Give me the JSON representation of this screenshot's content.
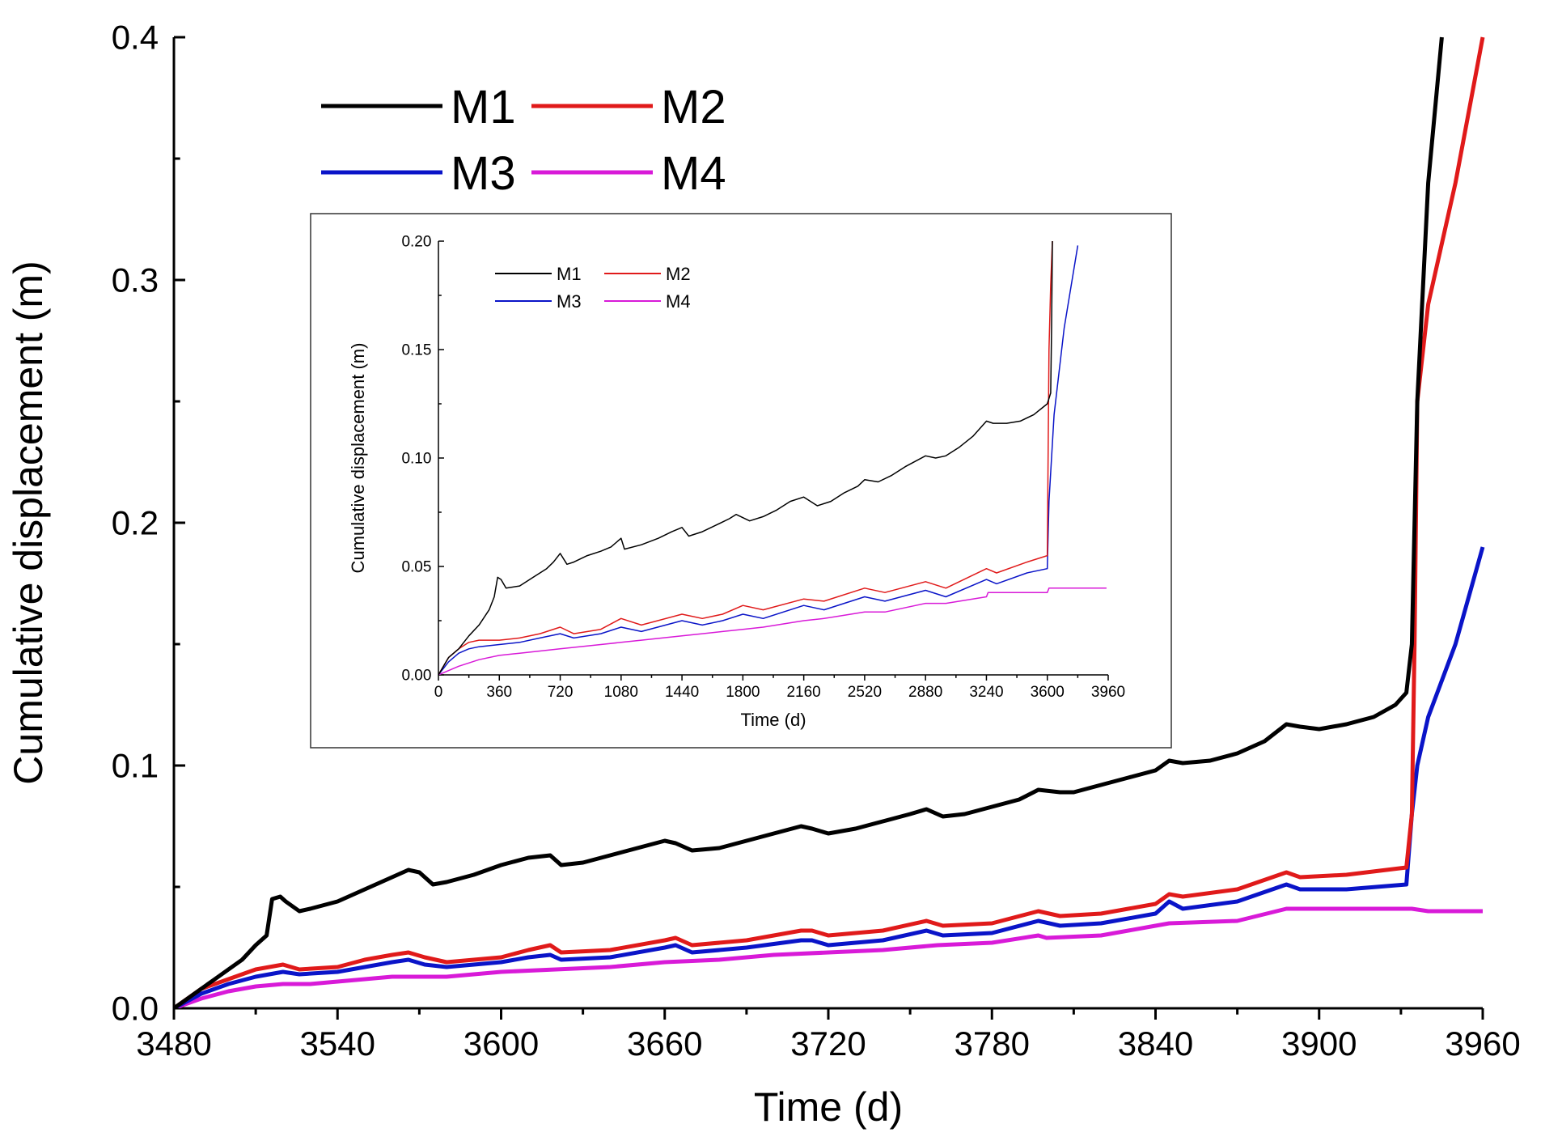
{
  "chart_data": [
    {
      "type": "line",
      "title": "",
      "xlabel": "Time (d)",
      "ylabel": "Cumulative displacement (m)",
      "xlim": [
        3480,
        3960
      ],
      "ylim": [
        0.0,
        0.4
      ],
      "xticks": [
        3480,
        3540,
        3600,
        3660,
        3720,
        3780,
        3840,
        3900,
        3960
      ],
      "xtick_labels": [
        "3480",
        "3540",
        "3600",
        "3660",
        "3720",
        "3780",
        "3840",
        "3900",
        "3960"
      ],
      "yticks": [
        0.0,
        0.1,
        0.2,
        0.3,
        0.4
      ],
      "ytick_labels": [
        "0.0",
        "0.1",
        "0.2",
        "0.3",
        "0.4"
      ],
      "grid": false,
      "legend": "top-left",
      "series": [
        {
          "name": "M1",
          "color": "#000000",
          "x": [
            3480,
            3485,
            3490,
            3495,
            3500,
            3505,
            3510,
            3514,
            3516,
            3519,
            3521,
            3526,
            3530,
            3540,
            3550,
            3560,
            3566,
            3570,
            3575,
            3580,
            3590,
            3600,
            3610,
            3618,
            3622,
            3630,
            3640,
            3650,
            3660,
            3664,
            3670,
            3680,
            3690,
            3700,
            3710,
            3714,
            3720,
            3730,
            3740,
            3750,
            3756,
            3762,
            3770,
            3780,
            3790,
            3797,
            3805,
            3810,
            3820,
            3830,
            3840,
            3845,
            3850,
            3860,
            3870,
            3880,
            3888,
            3893,
            3900,
            3910,
            3920,
            3928,
            3932,
            3934,
            3936,
            3940,
            3945
          ],
          "y": [
            0.0,
            0.004,
            0.008,
            0.012,
            0.016,
            0.02,
            0.026,
            0.03,
            0.045,
            0.046,
            0.044,
            0.04,
            0.041,
            0.044,
            0.049,
            0.054,
            0.057,
            0.056,
            0.051,
            0.052,
            0.055,
            0.059,
            0.062,
            0.063,
            0.059,
            0.06,
            0.063,
            0.066,
            0.069,
            0.068,
            0.065,
            0.066,
            0.069,
            0.072,
            0.075,
            0.074,
            0.072,
            0.074,
            0.077,
            0.08,
            0.082,
            0.079,
            0.08,
            0.083,
            0.086,
            0.09,
            0.089,
            0.089,
            0.092,
            0.095,
            0.098,
            0.102,
            0.101,
            0.102,
            0.105,
            0.11,
            0.117,
            0.116,
            0.115,
            0.117,
            0.12,
            0.125,
            0.13,
            0.15,
            0.25,
            0.34,
            0.4
          ]
        },
        {
          "name": "M2",
          "color": "#e01a1a",
          "x": [
            3480,
            3490,
            3500,
            3510,
            3520,
            3526,
            3540,
            3550,
            3560,
            3566,
            3572,
            3580,
            3600,
            3610,
            3618,
            3622,
            3640,
            3660,
            3664,
            3670,
            3690,
            3710,
            3714,
            3720,
            3740,
            3756,
            3762,
            3780,
            3797,
            3805,
            3820,
            3840,
            3845,
            3850,
            3870,
            3888,
            3893,
            3910,
            3932,
            3934,
            3935,
            3936,
            3940,
            3950,
            3960
          ],
          "y": [
            0.0,
            0.008,
            0.012,
            0.016,
            0.018,
            0.016,
            0.017,
            0.02,
            0.022,
            0.023,
            0.021,
            0.019,
            0.021,
            0.024,
            0.026,
            0.023,
            0.024,
            0.028,
            0.029,
            0.026,
            0.028,
            0.032,
            0.032,
            0.03,
            0.032,
            0.036,
            0.034,
            0.035,
            0.04,
            0.038,
            0.039,
            0.043,
            0.047,
            0.046,
            0.049,
            0.056,
            0.054,
            0.055,
            0.058,
            0.08,
            0.15,
            0.25,
            0.29,
            0.34,
            0.4
          ]
        },
        {
          "name": "M3",
          "color": "#0a14c8",
          "x": [
            3480,
            3490,
            3500,
            3510,
            3520,
            3526,
            3540,
            3550,
            3560,
            3566,
            3572,
            3580,
            3600,
            3610,
            3618,
            3622,
            3640,
            3660,
            3664,
            3670,
            3690,
            3710,
            3714,
            3720,
            3740,
            3756,
            3762,
            3780,
            3797,
            3805,
            3820,
            3840,
            3845,
            3850,
            3870,
            3888,
            3893,
            3910,
            3932,
            3934,
            3936,
            3940,
            3950,
            3960
          ],
          "y": [
            0.0,
            0.006,
            0.01,
            0.013,
            0.015,
            0.014,
            0.015,
            0.017,
            0.019,
            0.02,
            0.018,
            0.017,
            0.019,
            0.021,
            0.022,
            0.02,
            0.021,
            0.025,
            0.026,
            0.023,
            0.025,
            0.028,
            0.028,
            0.026,
            0.028,
            0.032,
            0.03,
            0.031,
            0.036,
            0.034,
            0.035,
            0.039,
            0.044,
            0.041,
            0.044,
            0.051,
            0.049,
            0.049,
            0.051,
            0.08,
            0.1,
            0.12,
            0.15,
            0.19
          ]
        },
        {
          "name": "M4",
          "color": "#d81ad8",
          "x": [
            3480,
            3490,
            3500,
            3510,
            3520,
            3530,
            3540,
            3560,
            3580,
            3600,
            3620,
            3640,
            3660,
            3680,
            3700,
            3720,
            3740,
            3760,
            3780,
            3797,
            3800,
            3820,
            3840,
            3845,
            3870,
            3888,
            3900,
            3920,
            3934,
            3940,
            3960
          ],
          "y": [
            0.0,
            0.004,
            0.007,
            0.009,
            0.01,
            0.01,
            0.011,
            0.013,
            0.013,
            0.015,
            0.016,
            0.017,
            0.019,
            0.02,
            0.022,
            0.023,
            0.024,
            0.026,
            0.027,
            0.03,
            0.029,
            0.03,
            0.034,
            0.035,
            0.036,
            0.041,
            0.041,
            0.041,
            0.041,
            0.04,
            0.04
          ]
        }
      ]
    },
    {
      "type": "line",
      "title": "",
      "xlabel": "Time (d)",
      "ylabel": "Cumulative displacement (m)",
      "xlim": [
        0,
        3960
      ],
      "ylim": [
        0.0,
        0.2
      ],
      "xticks": [
        0,
        360,
        720,
        1080,
        1440,
        1800,
        2160,
        2520,
        2880,
        3240,
        3600,
        3960
      ],
      "xtick_labels": [
        "0",
        "360",
        "720",
        "1080",
        "1440",
        "1800",
        "2160",
        "2520",
        "2880",
        "3240",
        "3600",
        "3960"
      ],
      "yticks": [
        0.0,
        0.05,
        0.1,
        0.15,
        0.2
      ],
      "ytick_labels": [
        "0.00",
        "0.05",
        "0.10",
        "0.15",
        "0.20"
      ],
      "grid": false,
      "legend": "top-left",
      "series": [
        {
          "name": "M1",
          "color": "#000000",
          "x": [
            0,
            60,
            120,
            180,
            240,
            300,
            330,
            350,
            370,
            400,
            480,
            560,
            640,
            680,
            720,
            760,
            800,
            880,
            960,
            1020,
            1080,
            1100,
            1200,
            1300,
            1380,
            1440,
            1480,
            1560,
            1640,
            1720,
            1760,
            1840,
            1920,
            2000,
            2080,
            2160,
            2240,
            2320,
            2400,
            2480,
            2520,
            2600,
            2680,
            2760,
            2880,
            2940,
            3000,
            3080,
            3160,
            3240,
            3280,
            3360,
            3440,
            3520,
            3600,
            3620,
            3625,
            3630
          ],
          "y": [
            0.0,
            0.008,
            0.012,
            0.018,
            0.023,
            0.03,
            0.036,
            0.045,
            0.044,
            0.04,
            0.041,
            0.045,
            0.049,
            0.052,
            0.056,
            0.051,
            0.052,
            0.055,
            0.057,
            0.059,
            0.063,
            0.058,
            0.06,
            0.063,
            0.066,
            0.068,
            0.064,
            0.066,
            0.069,
            0.072,
            0.074,
            0.071,
            0.073,
            0.076,
            0.08,
            0.082,
            0.078,
            0.08,
            0.084,
            0.087,
            0.09,
            0.089,
            0.092,
            0.096,
            0.101,
            0.1,
            0.101,
            0.105,
            0.11,
            0.117,
            0.116,
            0.116,
            0.117,
            0.12,
            0.125,
            0.13,
            0.16,
            0.2
          ]
        },
        {
          "name": "M2",
          "color": "#e01a1a",
          "x": [
            0,
            60,
            120,
            180,
            240,
            360,
            480,
            600,
            720,
            800,
            960,
            1080,
            1200,
            1440,
            1560,
            1680,
            1800,
            1920,
            2160,
            2280,
            2520,
            2640,
            2880,
            3000,
            3240,
            3300,
            3480,
            3600,
            3610,
            3620,
            3630
          ],
          "y": [
            0.0,
            0.008,
            0.012,
            0.015,
            0.016,
            0.016,
            0.017,
            0.019,
            0.022,
            0.019,
            0.021,
            0.026,
            0.023,
            0.028,
            0.026,
            0.028,
            0.032,
            0.03,
            0.035,
            0.034,
            0.04,
            0.038,
            0.043,
            0.04,
            0.049,
            0.047,
            0.052,
            0.055,
            0.15,
            0.18,
            0.2
          ]
        },
        {
          "name": "M3",
          "color": "#0a14c8",
          "x": [
            0,
            60,
            120,
            180,
            240,
            360,
            480,
            600,
            720,
            800,
            960,
            1080,
            1200,
            1440,
            1560,
            1680,
            1800,
            1920,
            2160,
            2280,
            2520,
            2640,
            2880,
            3000,
            3240,
            3300,
            3480,
            3600,
            3610,
            3640,
            3700,
            3780
          ],
          "y": [
            0.0,
            0.006,
            0.01,
            0.012,
            0.013,
            0.014,
            0.015,
            0.017,
            0.019,
            0.017,
            0.019,
            0.022,
            0.02,
            0.025,
            0.023,
            0.025,
            0.028,
            0.026,
            0.032,
            0.03,
            0.036,
            0.034,
            0.039,
            0.036,
            0.044,
            0.042,
            0.047,
            0.049,
            0.08,
            0.12,
            0.16,
            0.198
          ]
        },
        {
          "name": "M4",
          "color": "#d81ad8",
          "x": [
            0,
            120,
            240,
            360,
            480,
            600,
            720,
            960,
            1080,
            1200,
            1440,
            1560,
            1680,
            1800,
            1920,
            2160,
            2280,
            2520,
            2640,
            2880,
            3000,
            3240,
            3250,
            3600,
            3610,
            3950
          ],
          "y": [
            0.0,
            0.004,
            0.007,
            0.009,
            0.01,
            0.011,
            0.012,
            0.014,
            0.015,
            0.016,
            0.018,
            0.019,
            0.02,
            0.021,
            0.022,
            0.025,
            0.026,
            0.029,
            0.029,
            0.033,
            0.033,
            0.036,
            0.038,
            0.038,
            0.04,
            0.04
          ]
        }
      ]
    }
  ]
}
